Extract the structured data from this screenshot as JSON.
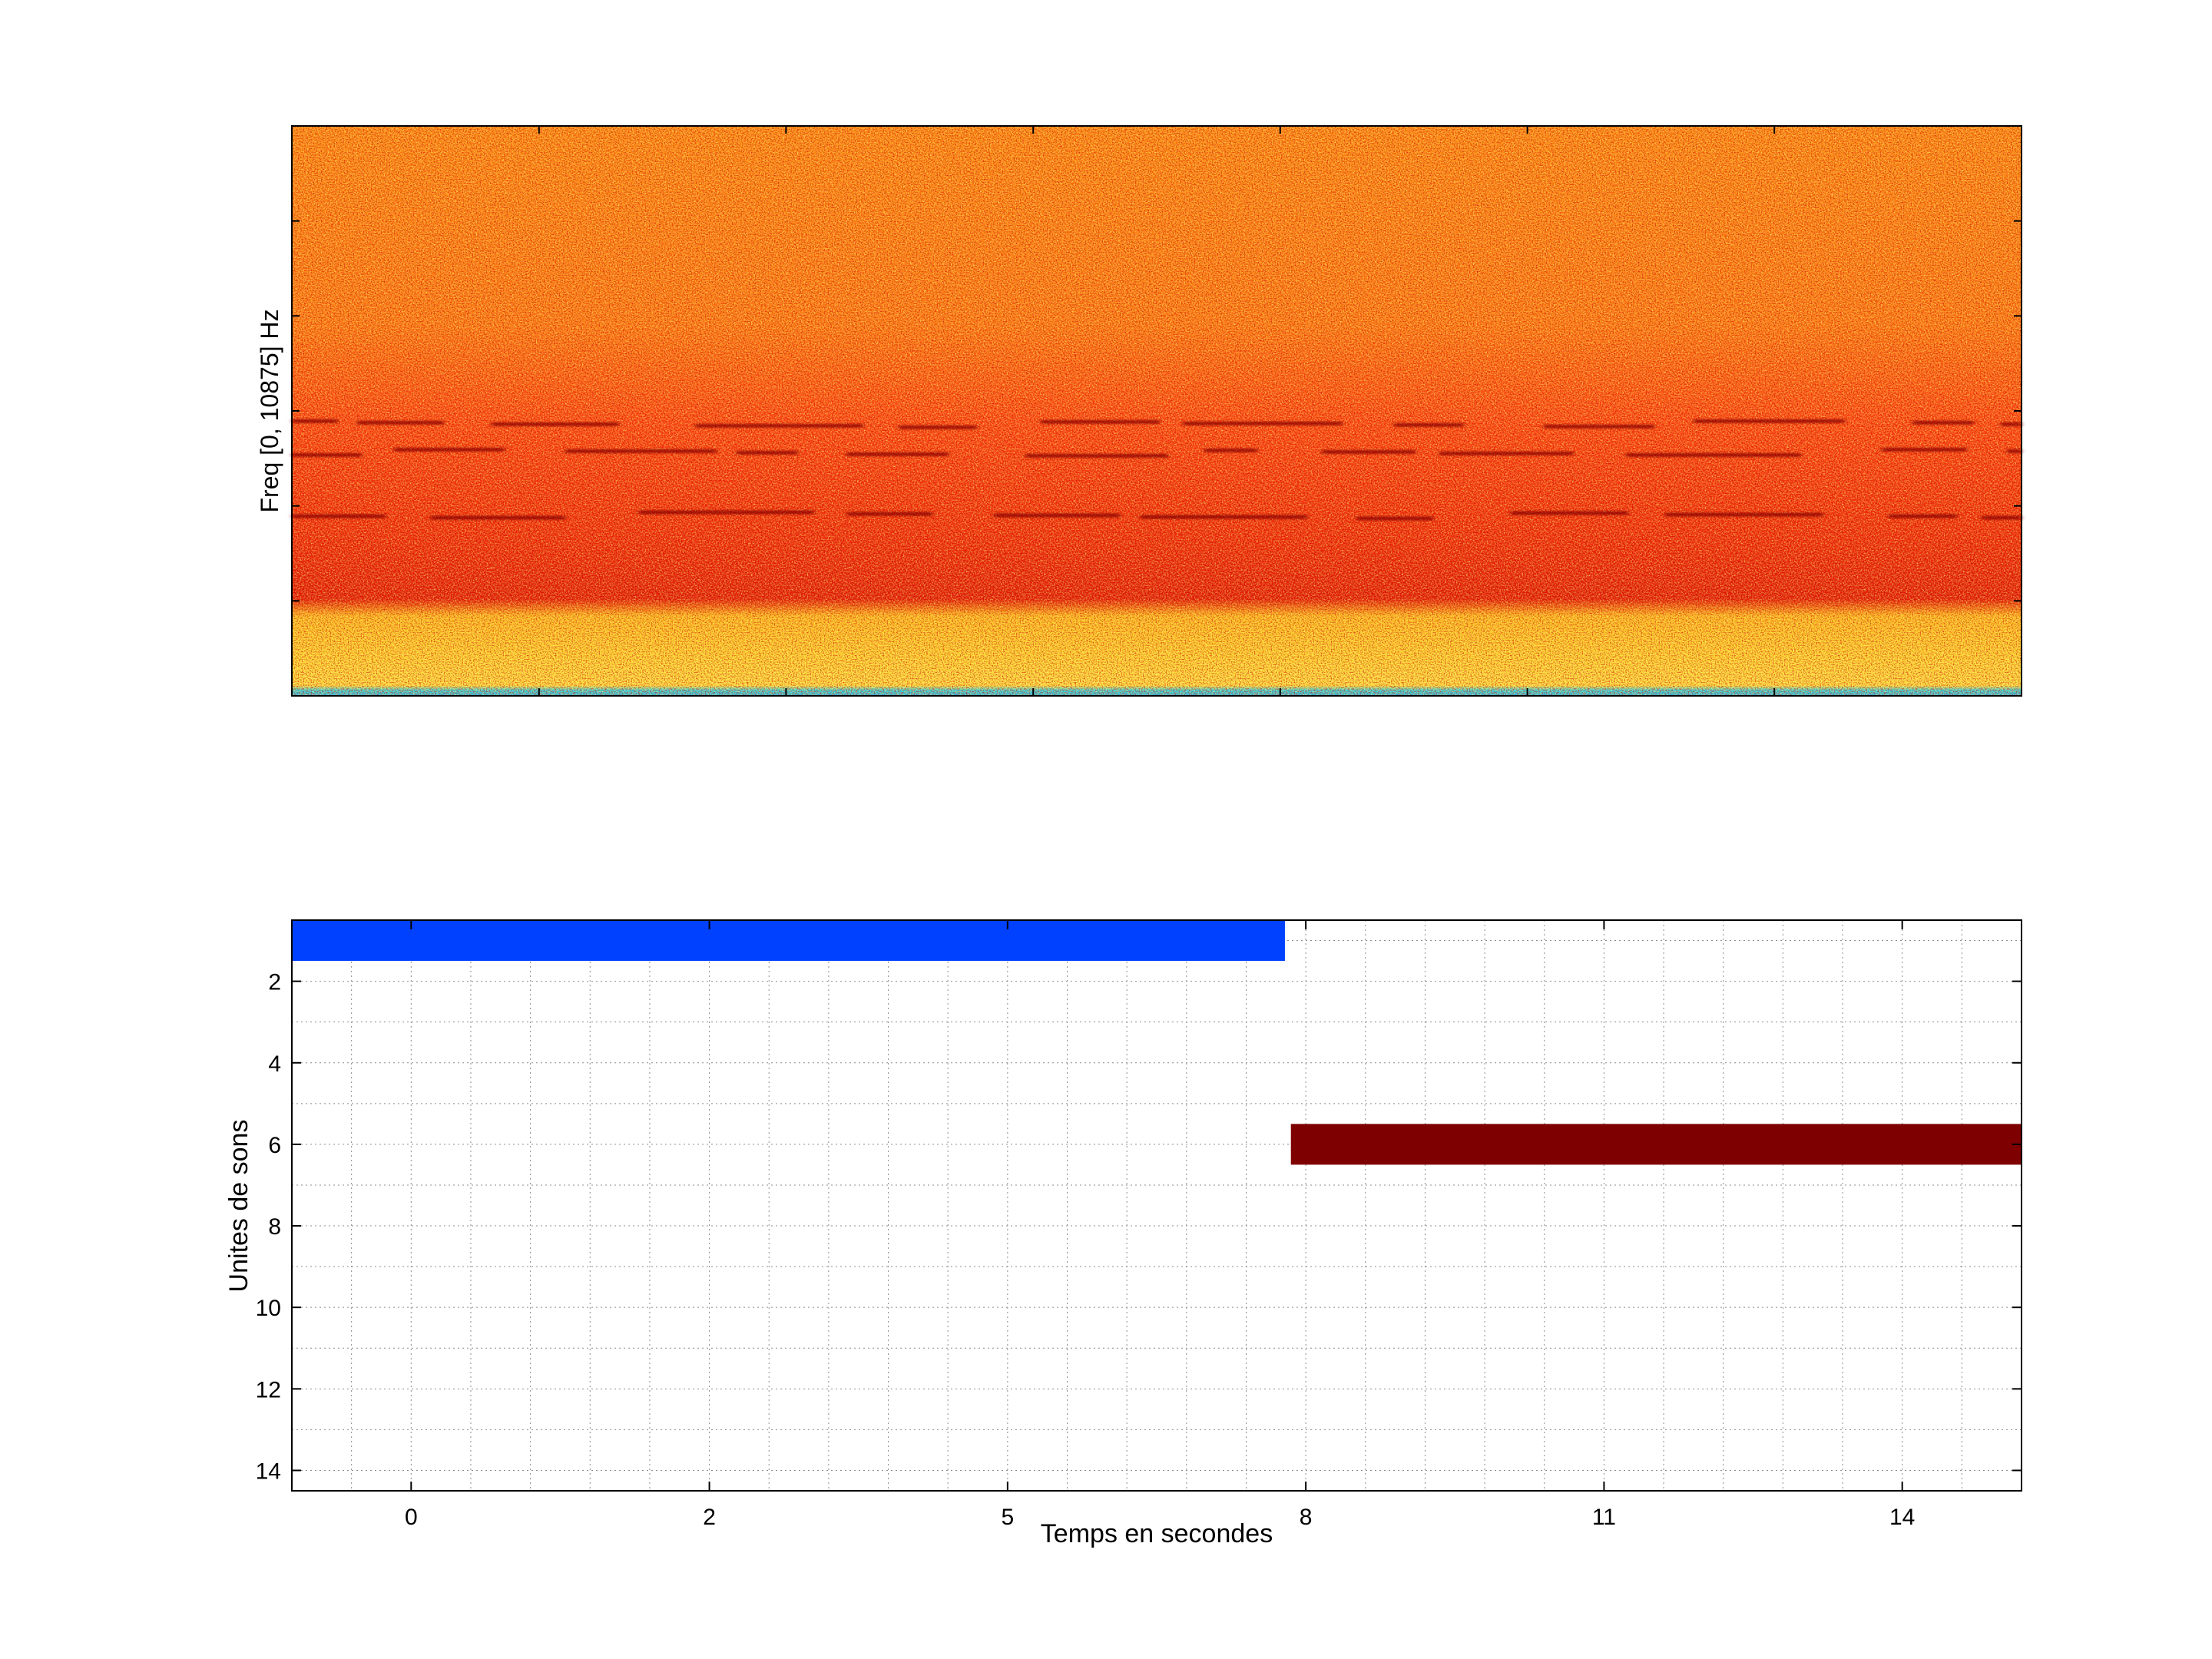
{
  "chart_data": [
    {
      "type": "heatmap",
      "description": "spectrogram",
      "title": "",
      "xlabel": "",
      "ylabel": "Freq [0, 10875] Hz",
      "freq_range_hz": [
        0,
        10875
      ],
      "colormap": "jet",
      "harmonic_bands_fraction_from_bottom": [
        0.48,
        0.43,
        0.32
      ],
      "grid": false
    },
    {
      "type": "bar",
      "orientation": "horizontal",
      "title": "",
      "xlabel": "Temps en secondes",
      "ylabel": "Unites de sons",
      "x_tick_labels": [
        "0",
        "2",
        "5",
        "8",
        "11",
        "14"
      ],
      "y_ticks": [
        2,
        4,
        6,
        8,
        10,
        12,
        14
      ],
      "ylim": [
        0.5,
        14.5
      ],
      "y_reversed": true,
      "grid": true,
      "segments": [
        {
          "unit": 1,
          "start_tick": -0.4,
          "end_tick": 2.93,
          "color": "#0041ff"
        },
        {
          "unit": 6,
          "start_tick": 2.95,
          "end_tick": 5.4,
          "color": "#7f0000"
        }
      ]
    }
  ]
}
